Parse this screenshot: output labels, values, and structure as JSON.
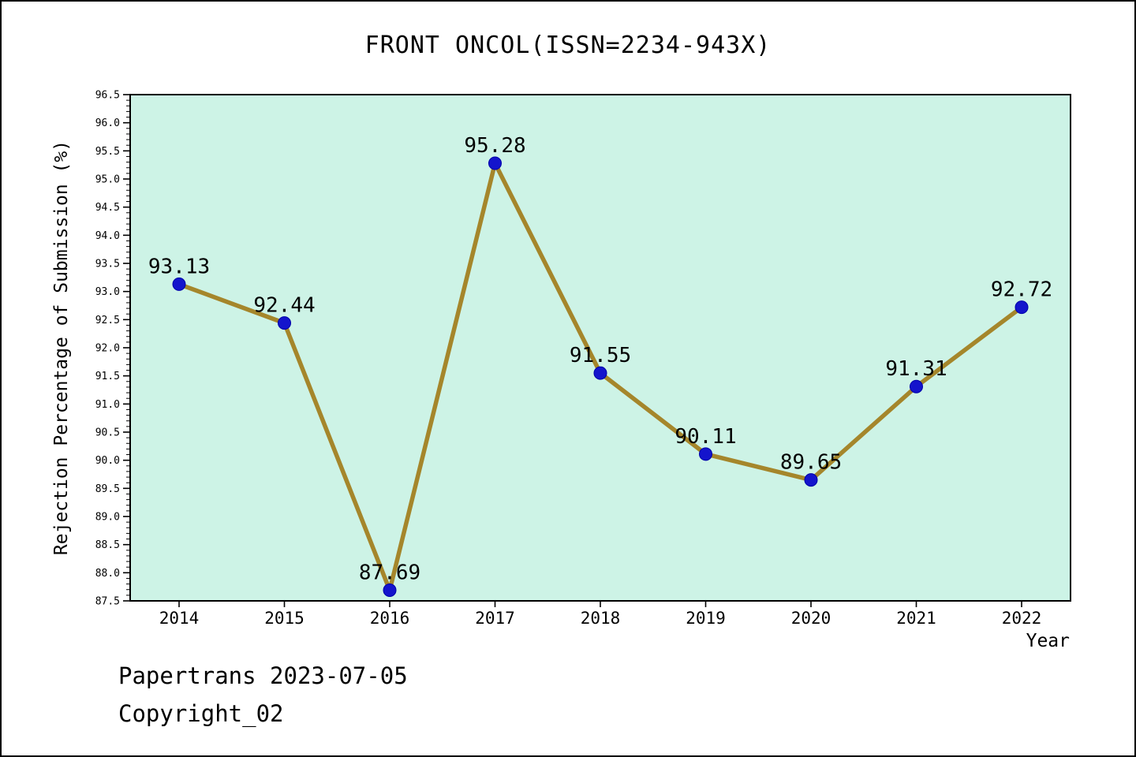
{
  "title": "FRONT ONCOL(ISSN=2234-943X)",
  "footer": {
    "line1": "Papertrans 2023-07-05",
    "line2": "Copyright_02"
  },
  "chart_data": {
    "type": "line",
    "title": "FRONT ONCOL(ISSN=2234-943X)",
    "categories": [
      "2014",
      "2015",
      "2016",
      "2017",
      "2018",
      "2019",
      "2020",
      "2021",
      "2022"
    ],
    "values": [
      93.13,
      92.44,
      87.69,
      95.28,
      91.55,
      90.11,
      89.65,
      91.31,
      92.72
    ],
    "xlabel": "Year",
    "ylabel": "Rejection Percentage of Submission (%)",
    "ylim": [
      87.5,
      96.5
    ],
    "y_major_step": 0.5,
    "y_minor_step": 0.1,
    "grid": false,
    "legend": null,
    "colors": {
      "line": "#a5862b",
      "marker": "#1414cc",
      "marker_edge": "#0000aa",
      "plot_bg": "#cdf3e6",
      "axis": "#000000",
      "text": "#000000"
    }
  }
}
